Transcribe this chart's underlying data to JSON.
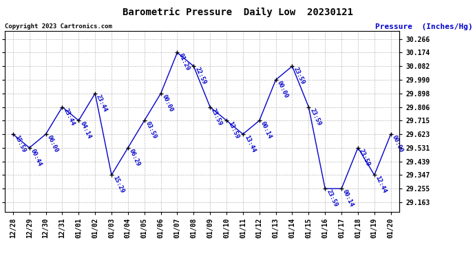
{
  "title": "Barometric Pressure  Daily Low  20230121",
  "ylabel": "Pressure  (Inches/Hg)",
  "copyright": "Copyright 2023 Cartronics.com",
  "x_labels": [
    "12/28",
    "12/29",
    "12/30",
    "12/31",
    "01/01",
    "01/02",
    "01/03",
    "01/04",
    "01/05",
    "01/06",
    "01/07",
    "01/08",
    "01/09",
    "01/10",
    "01/11",
    "01/12",
    "01/13",
    "01/14",
    "01/15",
    "01/16",
    "01/17",
    "01/18",
    "01/19",
    "01/20"
  ],
  "y_values": [
    29.623,
    29.531,
    29.623,
    29.806,
    29.715,
    29.898,
    29.347,
    29.531,
    29.715,
    29.898,
    30.174,
    30.082,
    29.806,
    29.715,
    29.623,
    29.715,
    29.99,
    30.082,
    29.806,
    29.255,
    29.255,
    29.531,
    29.347,
    29.623
  ],
  "point_labels": [
    "15:59",
    "00:44",
    "06:00",
    "23:44",
    "04:14",
    "23:44",
    "15:29",
    "06:29",
    "03:59",
    "00:00",
    "01:29",
    "22:59",
    "23:59",
    "13:59",
    "13:44",
    "00:14",
    "00:00",
    "23:59",
    "23:59",
    "23:59",
    "00:14",
    "23:59",
    "12:44",
    "00:00"
  ],
  "yticks": [
    29.163,
    29.255,
    29.347,
    29.439,
    29.531,
    29.623,
    29.715,
    29.806,
    29.898,
    29.99,
    30.082,
    30.174,
    30.266
  ],
  "ylim": [
    29.1,
    30.32
  ],
  "line_color": "#0000cc",
  "marker_color": "#000000",
  "label_color": "#0000cc",
  "title_color": "#000000",
  "ylabel_color": "#0000cc",
  "copyright_color": "#000000",
  "bg_color": "#ffffff",
  "grid_color": "#bbbbbb",
  "title_fontsize": 10,
  "label_fontsize": 6.5,
  "tick_fontsize": 7,
  "ylabel_fontsize": 8,
  "copyright_fontsize": 6.5
}
